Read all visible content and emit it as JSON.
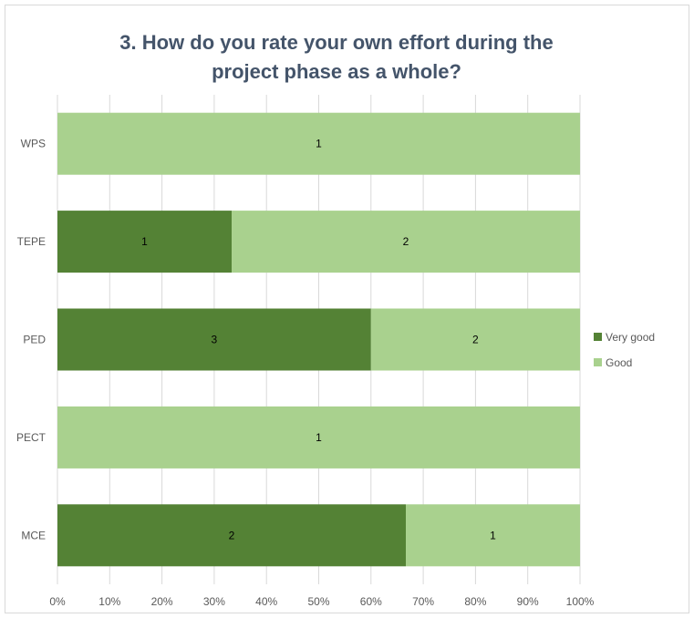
{
  "chart_data": {
    "type": "bar",
    "orientation": "horizontal",
    "stacking": "percent",
    "title_lines": [
      "3. How do you rate your own effort during the",
      "project phase as a whole?"
    ],
    "categories": [
      "WPS",
      "TEPE",
      "PED",
      "PECT",
      "MCE"
    ],
    "series": [
      {
        "name": "Very good",
        "color": "#548235",
        "values": [
          0,
          1,
          3,
          0,
          2
        ]
      },
      {
        "name": "Good",
        "color": "#a9d18e",
        "values": [
          1,
          2,
          2,
          1,
          1
        ]
      }
    ],
    "x_ticks": [
      "0%",
      "10%",
      "20%",
      "30%",
      "40%",
      "50%",
      "60%",
      "70%",
      "80%",
      "90%",
      "100%"
    ],
    "xlim": [
      0,
      100
    ],
    "grid": "vertical",
    "legend_position": "right"
  }
}
